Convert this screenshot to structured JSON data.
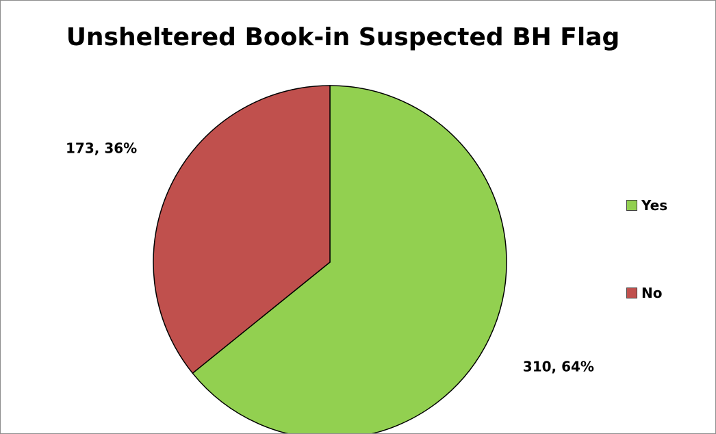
{
  "chart_data": {
    "type": "pie",
    "title": "Unsheltered Book-in Suspected BH Flag",
    "slices": [
      {
        "label": "Yes",
        "value": 310,
        "percent": 64,
        "color": "#92d050",
        "data_label": "310, 64%"
      },
      {
        "label": "No",
        "value": 173,
        "percent": 36,
        "color": "#c0504d",
        "data_label": "173, 36%"
      }
    ],
    "legend": {
      "position": "right",
      "entries": [
        "Yes",
        "No"
      ]
    }
  }
}
